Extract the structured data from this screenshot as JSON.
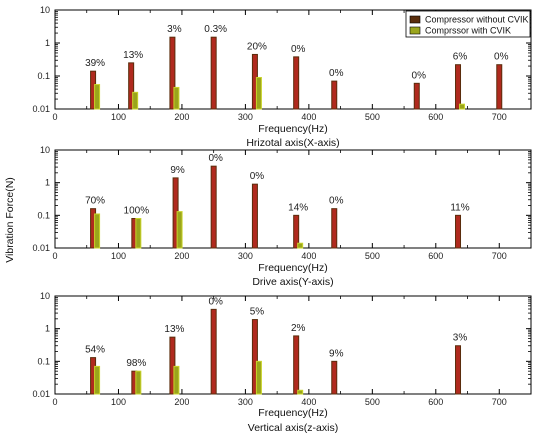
{
  "figure": {
    "ylabel": "Vibration Force(N)",
    "legend": {
      "placement": "top-right",
      "entries": [
        {
          "name": "Compressor without CVIK",
          "color": "#5a2d0c"
        },
        {
          "name": "Comprssor with CVIK",
          "color": "#9aa51c"
        }
      ]
    },
    "colors": {
      "without_face": "#b02a1e",
      "without_edge": "#5a2d0c",
      "with_face": "#9aa51c",
      "with_edge": "#c8d42a",
      "axis": "#000000"
    }
  },
  "chart_data": [
    {
      "type": "bar",
      "panel": "x-axis",
      "xlabel": "Frequency(Hz)",
      "subtitle": "Hrizotal axis(X-axis)",
      "xlim": [
        0,
        750
      ],
      "xticks": [
        "0",
        "100",
        "200",
        "300",
        "400",
        "500",
        "600",
        "700"
      ],
      "yscale": "log",
      "ylim": [
        0.01,
        10
      ],
      "yticks": [
        "0.01",
        "0.1",
        "1",
        "10"
      ],
      "x": [
        60,
        120,
        185,
        250,
        315,
        380,
        440,
        570,
        635,
        700
      ],
      "series": [
        {
          "name": "Compressor without CVIK",
          "values": [
            0.14,
            0.25,
            1.5,
            1.5,
            0.45,
            0.38,
            0.07,
            0.06,
            0.22,
            0.22
          ]
        },
        {
          "name": "Comprssor with CVIK",
          "values": [
            0.055,
            0.032,
            0.045,
            null,
            0.09,
            null,
            null,
            null,
            0.014,
            null
          ]
        }
      ],
      "annotations": [
        "39%",
        "13%",
        "3%",
        "0.3%",
        "20%",
        "0%",
        "0%",
        "0%",
        "6%",
        "0%"
      ]
    },
    {
      "type": "bar",
      "panel": "y-axis",
      "xlabel": "Frequency(Hz)",
      "subtitle": "Drive axis(Y-axis)",
      "xlim": [
        0,
        750
      ],
      "xticks": [
        "0",
        "100",
        "200",
        "300",
        "400",
        "500",
        "600",
        "700"
      ],
      "yscale": "log",
      "ylim": [
        0.01,
        10
      ],
      "yticks": [
        "0.01",
        "0.1",
        "1",
        "10"
      ],
      "x": [
        60,
        125,
        190,
        250,
        315,
        380,
        440,
        635
      ],
      "series": [
        {
          "name": "Compressor without CVIK",
          "values": [
            0.16,
            0.08,
            1.4,
            3.2,
            0.9,
            0.1,
            0.16,
            0.1
          ]
        },
        {
          "name": "Comprssor with CVIK",
          "values": [
            0.11,
            0.08,
            0.13,
            null,
            null,
            0.014,
            null,
            null
          ]
        }
      ],
      "annotations": [
        "70%",
        "100%",
        "9%",
        "0%",
        "0%",
        "14%",
        "0%",
        "11%"
      ]
    },
    {
      "type": "bar",
      "panel": "z-axis",
      "xlabel": "Frequency(Hz)",
      "subtitle": "Vertical axis(z-axis)",
      "xlim": [
        0,
        750
      ],
      "xticks": [
        "0",
        "100",
        "200",
        "300",
        "400",
        "500",
        "600",
        "700"
      ],
      "yscale": "log",
      "ylim": [
        0.01,
        10
      ],
      "yticks": [
        "0.01",
        "0.1",
        "1",
        "10"
      ],
      "x": [
        60,
        125,
        185,
        250,
        315,
        380,
        440,
        635
      ],
      "series": [
        {
          "name": "Compressor without CVIK",
          "values": [
            0.13,
            0.05,
            0.55,
            3.9,
            1.9,
            0.6,
            0.1,
            0.3
          ]
        },
        {
          "name": "Comprssor with CVIK",
          "values": [
            0.07,
            0.05,
            0.07,
            null,
            0.1,
            0.013,
            null,
            null
          ]
        }
      ],
      "annotations": [
        "54%",
        "98%",
        "13%",
        "0%",
        "5%",
        "2%",
        "9%",
        "3%"
      ]
    }
  ]
}
